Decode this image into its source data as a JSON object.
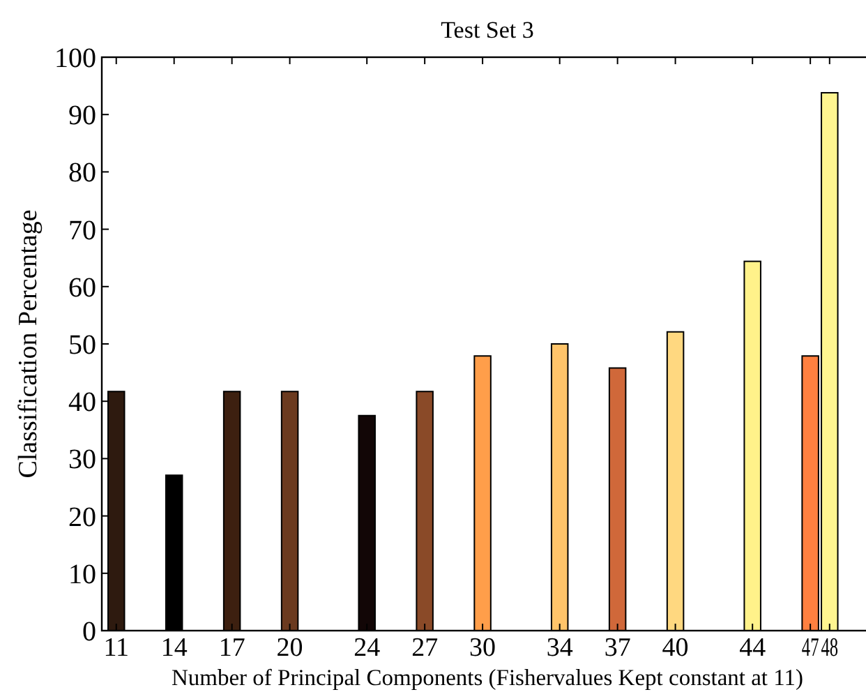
{
  "chart_data": {
    "type": "bar",
    "title": "Test Set 3",
    "xlabel": "Number of Principal Components (Fishervalues Kept constant at 11)",
    "ylabel": "Classification Percentage",
    "x": [
      11,
      14,
      17,
      20,
      24,
      27,
      30,
      34,
      37,
      40,
      44,
      47,
      48
    ],
    "values": [
      41.7,
      27.1,
      41.7,
      41.7,
      37.5,
      41.7,
      47.9,
      50,
      45.8,
      52.1,
      64.4,
      47.9,
      93.8
    ],
    "colors": [
      "#2e1a0f",
      "#000000",
      "#3d2010",
      "#6b3a1f",
      "#120606",
      "#8a4a28",
      "#ff9e4a",
      "#ffc46a",
      "#d0683a",
      "#ffd880",
      "#fff28a",
      "#ff8040",
      "#fff590"
    ],
    "xlim": [
      10.25,
      50.25
    ],
    "xticks": [
      11,
      14,
      17,
      20,
      24,
      27,
      30,
      34,
      37,
      40,
      44,
      47,
      48
    ],
    "ylim": [
      0,
      100
    ],
    "yticks": [
      0,
      10,
      20,
      30,
      40,
      50,
      60,
      70,
      80,
      90,
      100
    ],
    "grid": false
  }
}
